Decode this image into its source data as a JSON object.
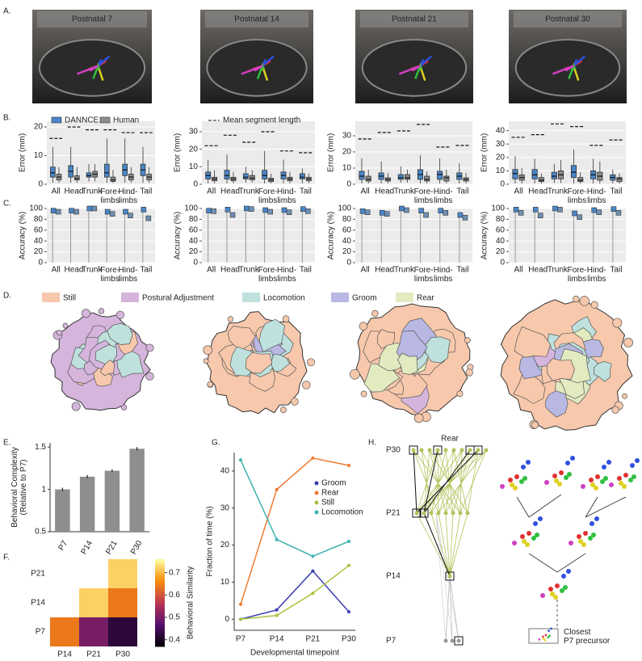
{
  "panel_labels": [
    "A.",
    "B.",
    "C.",
    "D.",
    "E.",
    "F.",
    "G.",
    "H."
  ],
  "photos": [
    "Postnatal 7",
    "Postnatal 14",
    "Postnatal 21",
    "Postnatal 30"
  ],
  "behaviors": [
    {
      "name": "Still",
      "color": "#f7c8ac"
    },
    {
      "name": "Postural Adjustment",
      "color": "#d5b5dc"
    },
    {
      "name": "Locomotion",
      "color": "#bfe1dd"
    },
    {
      "name": "Groom",
      "color": "#b9b8e3"
    },
    {
      "name": "Rear",
      "color": "#e2eac0"
    }
  ],
  "tree": {
    "title": "Rear",
    "levels": [
      "P30",
      "P21",
      "P14",
      "P7"
    ],
    "caption": "Closest\nP7 precursor"
  },
  "chart_data": [
    {
      "type": "box",
      "ylabel": "Error (mm)",
      "categories": [
        "All",
        "Head",
        "Trunk",
        "Fore-\nlimbs",
        "Hind-\nlimbs",
        "Tail"
      ],
      "ylim": [
        0,
        22
      ],
      "yticks": [
        0,
        10,
        20
      ],
      "grid": true,
      "series": [
        {
          "name": "DANNCE",
          "color": "#4a86c8",
          "values": [
            [
              0.5,
              2.5,
              4,
              6,
              13
            ],
            [
              0.5,
              2.5,
              4.5,
              6.5,
              13
            ],
            [
              1,
              2.5,
              3,
              4,
              7
            ],
            [
              0.5,
              2.5,
              4,
              7,
              16
            ],
            [
              0.5,
              3,
              5,
              7,
              16
            ],
            [
              0.5,
              3,
              5,
              7,
              13
            ]
          ]
        },
        {
          "name": "Human",
          "color": "#8c8c8c",
          "values": [
            [
              0.5,
              1.5,
              2.5,
              3.5,
              6
            ],
            [
              0.5,
              1.5,
              2,
              3,
              6
            ],
            [
              1,
              2.5,
              3.5,
              4.5,
              7
            ],
            [
              0.5,
              1,
              1.5,
              2.5,
              5
            ],
            [
              0.5,
              1.5,
              2.5,
              3.5,
              6
            ],
            [
              0.5,
              1.5,
              2.5,
              3.5,
              6
            ]
          ]
        }
      ],
      "reference": {
        "values": [
          16,
          20,
          19,
          19,
          18,
          18
        ]
      }
    },
    {
      "type": "box",
      "ylabel": "Error (mm)",
      "categories": [
        "All",
        "Head",
        "Trunk",
        "Fore-\nlimbs",
        "Hind-\nlimbs",
        "Tail"
      ],
      "ylim": [
        0,
        36
      ],
      "yticks": [
        0,
        10,
        20,
        30
      ],
      "grid": true,
      "series": [
        {
          "color": "#4a86c8",
          "values": [
            [
              0.5,
              3,
              5,
              7,
              14
            ],
            [
              0.5,
              3,
              5,
              8,
              17
            ],
            [
              1,
              3,
              4,
              6,
              10
            ],
            [
              0.5,
              3,
              5,
              8,
              19
            ],
            [
              0.5,
              3,
              5,
              7,
              14
            ],
            [
              0.5,
              3,
              4,
              6,
              9
            ]
          ]
        },
        {
          "color": "#8c8c8c",
          "values": [
            [
              0.5,
              2,
              3,
              4,
              8
            ],
            [
              0.5,
              2,
              3,
              4,
              7
            ],
            [
              1,
              2.5,
              3.5,
              5,
              8
            ],
            [
              0.5,
              1.5,
              2.5,
              3.5,
              6
            ],
            [
              0.5,
              2,
              3,
              4,
              7
            ],
            [
              0.5,
              2,
              3,
              4,
              6
            ]
          ]
        }
      ],
      "reference": {
        "name": "Mean segment length",
        "values": [
          22,
          28,
          24,
          30,
          19,
          18
        ]
      }
    },
    {
      "type": "box",
      "ylabel": "Error (mm)",
      "categories": [
        "All",
        "Head",
        "Trunk",
        "Fore-\nlimbs",
        "Hind-\nlimbs",
        "Tail"
      ],
      "ylim": [
        0,
        39
      ],
      "yticks": [
        0,
        10,
        20,
        30
      ],
      "grid": true,
      "series": [
        {
          "color": "#4a86c8",
          "values": [
            [
              0.5,
              3,
              5,
              8,
              16
            ],
            [
              0.5,
              3,
              5,
              7,
              14
            ],
            [
              1,
              3,
              4,
              6,
              11
            ],
            [
              0.5,
              3,
              6,
              9,
              18
            ],
            [
              0.5,
              3,
              6,
              8,
              16
            ],
            [
              0.5,
              3,
              5,
              7,
              13
            ]
          ]
        },
        {
          "color": "#8c8c8c",
          "values": [
            [
              0.5,
              2,
              3,
              5,
              9
            ],
            [
              0.5,
              2,
              3,
              4,
              7
            ],
            [
              1,
              3,
              4,
              6,
              9
            ],
            [
              0.5,
              2,
              3,
              5,
              8
            ],
            [
              0.5,
              2,
              4,
              5,
              9
            ],
            [
              0.5,
              2,
              3,
              4,
              7
            ]
          ]
        }
      ],
      "reference": {
        "values": [
          28,
          32,
          33,
          37,
          23,
          24
        ]
      }
    },
    {
      "type": "box",
      "ylabel": "Error (mm)",
      "categories": [
        "All",
        "Head",
        "Trunk",
        "Fore-\nlimbs",
        "Hind-\nlimbs",
        "Tail"
      ],
      "ylim": [
        0,
        47
      ],
      "yticks": [
        0,
        10,
        20,
        30,
        40
      ],
      "grid": true,
      "series": [
        {
          "color": "#4a86c8",
          "values": [
            [
              0.5,
              4,
              8,
              11,
              21
            ],
            [
              0.5,
              4,
              7,
              11,
              19
            ],
            [
              1,
              4,
              6,
              9,
              15
            ],
            [
              0.5,
              5,
              9,
              14,
              26
            ],
            [
              0.5,
              4,
              7,
              10,
              19
            ],
            [
              0.5,
              3,
              5,
              7,
              11
            ]
          ]
        },
        {
          "color": "#8c8c8c",
          "values": [
            [
              0.5,
              3,
              5,
              7,
              12
            ],
            [
              0.5,
              2,
              3,
              5,
              8
            ],
            [
              1,
              4,
              7,
              10,
              18
            ],
            [
              0.5,
              2,
              3,
              5,
              9
            ],
            [
              0.5,
              3,
              6,
              9,
              17
            ],
            [
              0.5,
              2,
              4,
              5,
              8
            ]
          ]
        }
      ],
      "reference": {
        "values": [
          35,
          37,
          45,
          43,
          29,
          33
        ]
      }
    },
    {
      "type": "strip",
      "ylabel": "Accuracy (%)",
      "categories": [
        "All",
        "Head",
        "Trunk",
        "Fore-\nlimbs",
        "Hind-\nlimbs",
        "Tail"
      ],
      "ylim": [
        0,
        100
      ],
      "yticks": [
        0,
        20,
        40,
        60,
        80,
        100
      ],
      "grid": true,
      "series": [
        {
          "color": "#4a86c8",
          "values": [
            96,
            96,
            100,
            94,
            94,
            98
          ]
        },
        {
          "color": "#6f8fb3",
          "values": [
            94,
            94,
            100,
            90,
            87,
            82
          ]
        }
      ]
    },
    {
      "type": "strip",
      "ylabel": "Accuracy (%)",
      "categories": [
        "All",
        "Head",
        "Trunk",
        "Fore-\nlimbs",
        "Hind-\nlimbs",
        "Tail"
      ],
      "ylim": [
        0,
        100
      ],
      "yticks": [
        0,
        20,
        40,
        60,
        80,
        100
      ],
      "grid": true,
      "series": [
        {
          "color": "#4a86c8",
          "values": [
            96,
            98,
            100,
            97,
            97,
            99
          ]
        },
        {
          "color": "#6f8fb3",
          "values": [
            95,
            88,
            99,
            94,
            93,
            95
          ]
        }
      ]
    },
    {
      "type": "strip",
      "ylabel": "Accuracy (%)",
      "categories": [
        "All",
        "Head",
        "Trunk",
        "Fore-\nlimbs",
        "Hind-\nlimbs",
        "Tail"
      ],
      "ylim": [
        0,
        100
      ],
      "yticks": [
        0,
        20,
        40,
        60,
        80,
        100
      ],
      "grid": true,
      "series": [
        {
          "color": "#4a86c8",
          "values": [
            95,
            92,
            100,
            96,
            96,
            88
          ]
        },
        {
          "color": "#6f8fb3",
          "values": [
            93,
            90,
            97,
            88,
            92,
            83
          ]
        }
      ]
    },
    {
      "type": "strip",
      "ylabel": "Accuracy (%)",
      "categories": [
        "All",
        "Head",
        "Trunk",
        "Fore-\nlimbs",
        "Hind-\nlimbs",
        "Tail"
      ],
      "ylim": [
        0,
        100
      ],
      "yticks": [
        0,
        20,
        40,
        60,
        80,
        100
      ],
      "grid": true,
      "series": [
        {
          "color": "#4a86c8",
          "values": [
            98,
            98,
            100,
            91,
            97,
            99
          ]
        },
        {
          "color": "#6f8fb3",
          "values": [
            92,
            87,
            98,
            84,
            93,
            92
          ]
        }
      ]
    },
    {
      "type": "bar",
      "ylabel": "Behavioral Complexity\n(Relative to P7)",
      "categories": [
        "P7",
        "P14",
        "P21",
        "P30"
      ],
      "values": [
        1.0,
        1.15,
        1.22,
        1.48
      ],
      "errors": [
        0.02,
        0.02,
        0.015,
        0.02
      ],
      "color": "#8e8e8e",
      "ylim": [
        0.5,
        1.55
      ],
      "yticks": [
        0.5,
        1,
        1.5
      ]
    },
    {
      "type": "heatmap",
      "x": [
        "P14",
        "P21",
        "P30"
      ],
      "y": [
        "P21",
        "P14",
        "P7"
      ],
      "values": [
        [
          null,
          null,
          0.72
        ],
        [
          null,
          0.72,
          0.64
        ],
        [
          0.64,
          0.5,
          0.42
        ]
      ],
      "colormap": "inferno",
      "clim": [
        0.37,
        0.76
      ],
      "cticks": [
        0.4,
        0.5,
        0.6,
        0.7
      ],
      "clabel": "Behavioral Similarity"
    },
    {
      "type": "line",
      "xlabel": "Developmental timepoint",
      "ylabel": "Fraction of time (%)",
      "categories": [
        "P7",
        "P14",
        "P21",
        "P30"
      ],
      "ylim": [
        -3,
        45
      ],
      "yticks": [
        0,
        10,
        20,
        30,
        40
      ],
      "series": [
        {
          "name": "Groom",
          "color": "#3a3fb0",
          "values": [
            0,
            2.5,
            13,
            2
          ]
        },
        {
          "name": "Rear",
          "color": "#ee7b30",
          "values": [
            4,
            35,
            43.5,
            41.5
          ]
        },
        {
          "name": "Still",
          "color": "#a9c23c",
          "values": [
            0,
            1,
            7,
            14.5
          ]
        },
        {
          "name": "Locomotion",
          "color": "#3fb0ae",
          "values": [
            43,
            21.5,
            17,
            21
          ]
        }
      ]
    }
  ]
}
